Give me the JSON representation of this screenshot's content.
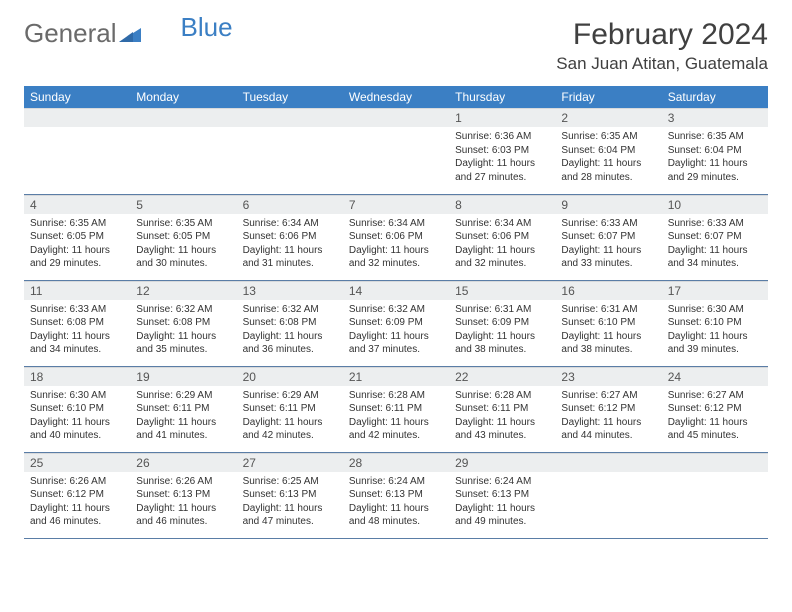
{
  "logo": {
    "part1": "General",
    "part2": "Blue"
  },
  "title": "February 2024",
  "location": "San Juan Atitan, Guatemala",
  "colors": {
    "header_bg": "#3b7fc4",
    "header_text": "#ffffff",
    "daynum_bg": "#eceeef",
    "row_border": "#5a7da6",
    "logo_gray": "#6a6a6a",
    "logo_blue": "#3b7fc4"
  },
  "weekdays": [
    "Sunday",
    "Monday",
    "Tuesday",
    "Wednesday",
    "Thursday",
    "Friday",
    "Saturday"
  ],
  "first_weekday_index": 4,
  "days": [
    {
      "n": 1,
      "sunrise": "6:36 AM",
      "sunset": "6:03 PM",
      "daylight": "11 hours and 27 minutes."
    },
    {
      "n": 2,
      "sunrise": "6:35 AM",
      "sunset": "6:04 PM",
      "daylight": "11 hours and 28 minutes."
    },
    {
      "n": 3,
      "sunrise": "6:35 AM",
      "sunset": "6:04 PM",
      "daylight": "11 hours and 29 minutes."
    },
    {
      "n": 4,
      "sunrise": "6:35 AM",
      "sunset": "6:05 PM",
      "daylight": "11 hours and 29 minutes."
    },
    {
      "n": 5,
      "sunrise": "6:35 AM",
      "sunset": "6:05 PM",
      "daylight": "11 hours and 30 minutes."
    },
    {
      "n": 6,
      "sunrise": "6:34 AM",
      "sunset": "6:06 PM",
      "daylight": "11 hours and 31 minutes."
    },
    {
      "n": 7,
      "sunrise": "6:34 AM",
      "sunset": "6:06 PM",
      "daylight": "11 hours and 32 minutes."
    },
    {
      "n": 8,
      "sunrise": "6:34 AM",
      "sunset": "6:06 PM",
      "daylight": "11 hours and 32 minutes."
    },
    {
      "n": 9,
      "sunrise": "6:33 AM",
      "sunset": "6:07 PM",
      "daylight": "11 hours and 33 minutes."
    },
    {
      "n": 10,
      "sunrise": "6:33 AM",
      "sunset": "6:07 PM",
      "daylight": "11 hours and 34 minutes."
    },
    {
      "n": 11,
      "sunrise": "6:33 AM",
      "sunset": "6:08 PM",
      "daylight": "11 hours and 34 minutes."
    },
    {
      "n": 12,
      "sunrise": "6:32 AM",
      "sunset": "6:08 PM",
      "daylight": "11 hours and 35 minutes."
    },
    {
      "n": 13,
      "sunrise": "6:32 AM",
      "sunset": "6:08 PM",
      "daylight": "11 hours and 36 minutes."
    },
    {
      "n": 14,
      "sunrise": "6:32 AM",
      "sunset": "6:09 PM",
      "daylight": "11 hours and 37 minutes."
    },
    {
      "n": 15,
      "sunrise": "6:31 AM",
      "sunset": "6:09 PM",
      "daylight": "11 hours and 38 minutes."
    },
    {
      "n": 16,
      "sunrise": "6:31 AM",
      "sunset": "6:10 PM",
      "daylight": "11 hours and 38 minutes."
    },
    {
      "n": 17,
      "sunrise": "6:30 AM",
      "sunset": "6:10 PM",
      "daylight": "11 hours and 39 minutes."
    },
    {
      "n": 18,
      "sunrise": "6:30 AM",
      "sunset": "6:10 PM",
      "daylight": "11 hours and 40 minutes."
    },
    {
      "n": 19,
      "sunrise": "6:29 AM",
      "sunset": "6:11 PM",
      "daylight": "11 hours and 41 minutes."
    },
    {
      "n": 20,
      "sunrise": "6:29 AM",
      "sunset": "6:11 PM",
      "daylight": "11 hours and 42 minutes."
    },
    {
      "n": 21,
      "sunrise": "6:28 AM",
      "sunset": "6:11 PM",
      "daylight": "11 hours and 42 minutes."
    },
    {
      "n": 22,
      "sunrise": "6:28 AM",
      "sunset": "6:11 PM",
      "daylight": "11 hours and 43 minutes."
    },
    {
      "n": 23,
      "sunrise": "6:27 AM",
      "sunset": "6:12 PM",
      "daylight": "11 hours and 44 minutes."
    },
    {
      "n": 24,
      "sunrise": "6:27 AM",
      "sunset": "6:12 PM",
      "daylight": "11 hours and 45 minutes."
    },
    {
      "n": 25,
      "sunrise": "6:26 AM",
      "sunset": "6:12 PM",
      "daylight": "11 hours and 46 minutes."
    },
    {
      "n": 26,
      "sunrise": "6:26 AM",
      "sunset": "6:13 PM",
      "daylight": "11 hours and 46 minutes."
    },
    {
      "n": 27,
      "sunrise": "6:25 AM",
      "sunset": "6:13 PM",
      "daylight": "11 hours and 47 minutes."
    },
    {
      "n": 28,
      "sunrise": "6:24 AM",
      "sunset": "6:13 PM",
      "daylight": "11 hours and 48 minutes."
    },
    {
      "n": 29,
      "sunrise": "6:24 AM",
      "sunset": "6:13 PM",
      "daylight": "11 hours and 49 minutes."
    }
  ],
  "labels": {
    "sunrise_prefix": "Sunrise: ",
    "sunset_prefix": "Sunset: ",
    "daylight_prefix": "Daylight: "
  }
}
